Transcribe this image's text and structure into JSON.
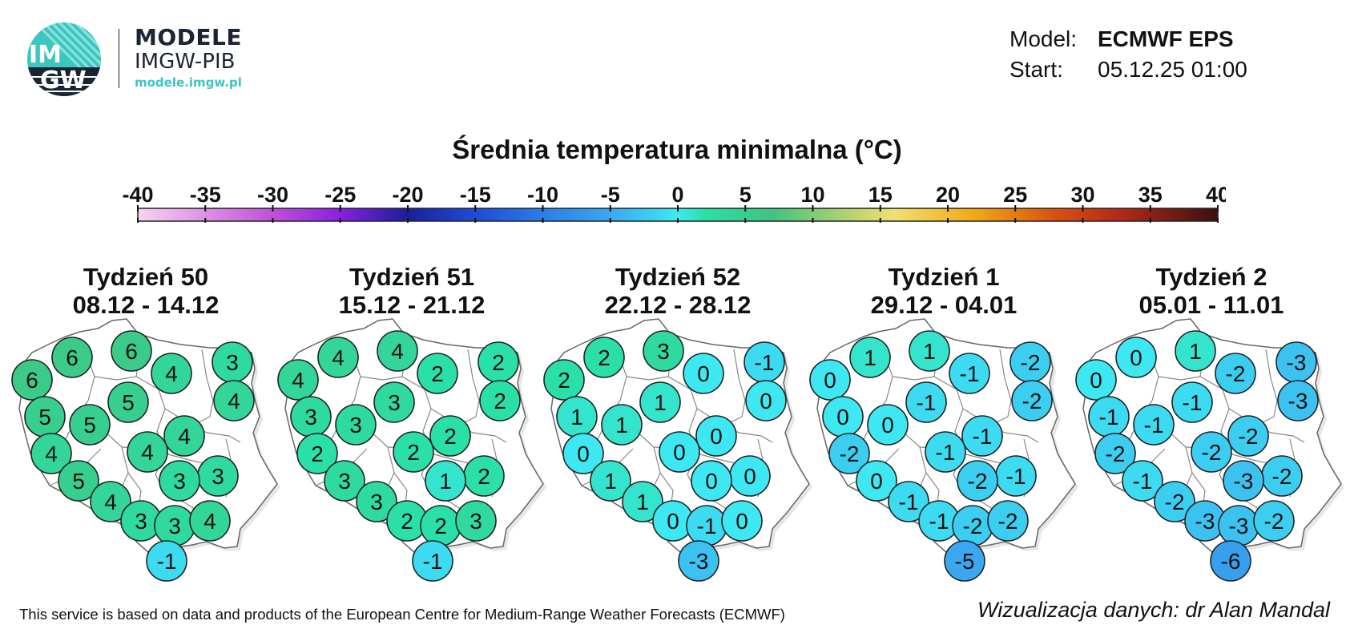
{
  "logo": {
    "mark_text_top": "IM",
    "mark_text_bottom": "GW",
    "line1": "MODELE",
    "line2": "IMGW-PIB",
    "url": "modele.imgw.pl",
    "colors": {
      "teal": "#3cc6c0",
      "navy": "#1b2433"
    }
  },
  "info": {
    "model_label": "Model:",
    "model_value": "ECMWF EPS",
    "start_label": "Start:",
    "start_value": "05.12.25 01:00"
  },
  "title": "Średnia temperatura minimalna (°C)",
  "scale": {
    "ticks": [
      "-40",
      "-35",
      "-30",
      "-25",
      "-20",
      "-15",
      "-10",
      "-5",
      "0",
      "5",
      "10",
      "15",
      "20",
      "25",
      "30",
      "35",
      "40"
    ],
    "min": -40,
    "max": 40,
    "color_stops": [
      {
        "t": -40,
        "color": "#f7d3f2"
      },
      {
        "t": -30,
        "color": "#c050d8"
      },
      {
        "t": -25,
        "color": "#8a1fe0"
      },
      {
        "t": -20,
        "color": "#1a1f9a"
      },
      {
        "t": -15,
        "color": "#1e4cd6"
      },
      {
        "t": -10,
        "color": "#2a7de8"
      },
      {
        "t": -5,
        "color": "#3aa8f0"
      },
      {
        "t": 0,
        "color": "#3ee8f2"
      },
      {
        "t": 2,
        "color": "#2ae0a8"
      },
      {
        "t": 7,
        "color": "#40c480"
      },
      {
        "t": 12,
        "color": "#a8d070"
      },
      {
        "t": 16,
        "color": "#f0e070"
      },
      {
        "t": 22,
        "color": "#f0a818"
      },
      {
        "t": 28,
        "color": "#d85010"
      },
      {
        "t": 33,
        "color": "#b02818"
      },
      {
        "t": 40,
        "color": "#3a1010"
      }
    ]
  },
  "weeks": [
    {
      "label": "Tydzień 50",
      "dates": "08.12 - 14.12",
      "values": [
        6,
        6,
        6,
        3,
        4,
        4,
        5,
        5,
        5,
        4,
        4,
        4,
        3,
        5,
        4,
        3,
        3,
        3,
        4,
        -1
      ]
    },
    {
      "label": "Tydzień 51",
      "dates": "15.12 - 21.12",
      "values": [
        4,
        4,
        4,
        2,
        2,
        2,
        3,
        3,
        3,
        2,
        2,
        2,
        2,
        3,
        3,
        2,
        1,
        2,
        3,
        -1
      ]
    },
    {
      "label": "Tydzień 52",
      "dates": "22.12 - 28.12",
      "values": [
        2,
        2,
        3,
        -1,
        0,
        0,
        1,
        1,
        1,
        0,
        0,
        0,
        0,
        1,
        1,
        0,
        0,
        -1,
        0,
        -3
      ]
    },
    {
      "label": "Tydzień 1",
      "dates": "29.12 - 04.01",
      "values": [
        0,
        1,
        1,
        -2,
        -1,
        -2,
        0,
        0,
        -1,
        -2,
        -1,
        -1,
        -1,
        0,
        -1,
        -1,
        -2,
        -2,
        -2,
        -5
      ]
    },
    {
      "label": "Tydzień 2",
      "dates": "05.01 - 11.01",
      "values": [
        0,
        0,
        1,
        -3,
        -2,
        -3,
        -1,
        -1,
        -1,
        -2,
        -2,
        -2,
        -2,
        -1,
        -2,
        -3,
        -3,
        -3,
        -2,
        -6
      ]
    }
  ],
  "footer": {
    "left": "This service is based on data and products of the European Centre for Medium-Range Weather Forecasts (ECMWF)",
    "right": "Wizualizacja danych: dr Alan Mandal"
  }
}
